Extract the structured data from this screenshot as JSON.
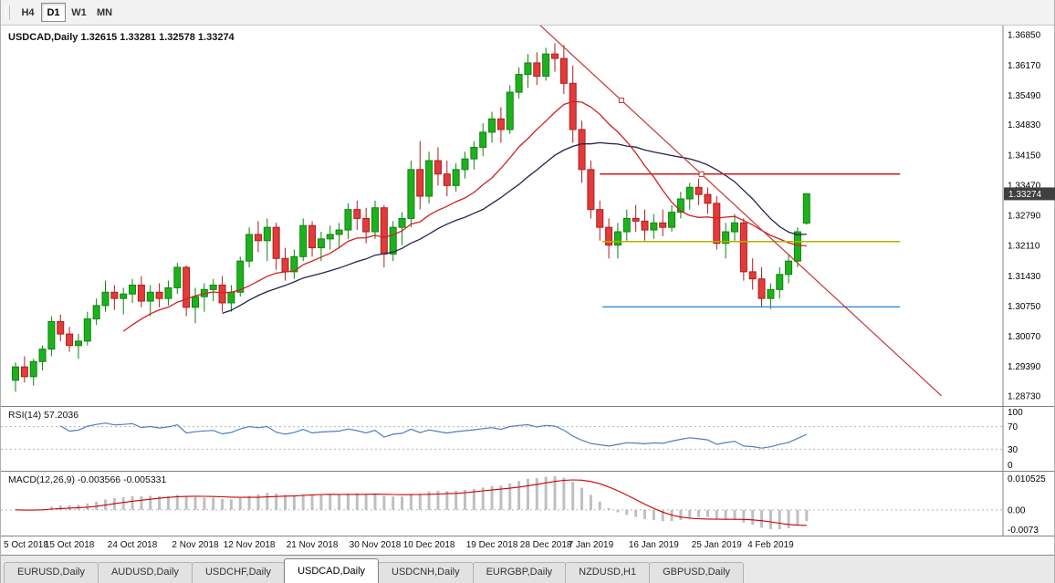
{
  "toolbar": {
    "periods": [
      {
        "label": "H4",
        "active": false
      },
      {
        "label": "D1",
        "active": true
      },
      {
        "label": "W1",
        "active": false
      },
      {
        "label": "MN",
        "active": false
      }
    ]
  },
  "chart": {
    "title": "USDCAD,Daily 1.32615 1.33281 1.32578 1.33274"
  },
  "chart_data": {
    "type": "candlestick",
    "symbol": "USDCAD",
    "period": "Daily",
    "ohlc_display": {
      "open": "1.32615",
      "high": "1.33281",
      "low": "1.32578",
      "close": "1.33274"
    },
    "current_price": "1.33274",
    "price_axis_ticks": [
      "1.36850",
      "1.36170",
      "1.35490",
      "1.34830",
      "1.34150",
      "1.33470",
      "1.32790",
      "1.32110",
      "1.31430",
      "1.30750",
      "1.30070",
      "1.29390",
      "1.28730"
    ],
    "x_axis_labels": [
      [
        "5 Oct 2018",
        0
      ],
      [
        "15 Oct 2018",
        6
      ],
      [
        "24 Oct 2018",
        13
      ],
      [
        "2 Nov 2018",
        20
      ],
      [
        "12 Nov 2018",
        26
      ],
      [
        "21 Nov 2018",
        33
      ],
      [
        "30 Nov 2018",
        40
      ],
      [
        "10 Dec 2018",
        46
      ],
      [
        "19 Dec 2018",
        53
      ],
      [
        "28 Dec 2018",
        59
      ],
      [
        "7 Jan 2019",
        64
      ],
      [
        "16 Jan 2019",
        71
      ],
      [
        "25 Jan 2019",
        78
      ],
      [
        "4 Feb 2019",
        84
      ]
    ],
    "candles": [
      [
        1.2908,
        1.2948,
        1.2882,
        1.2938
      ],
      [
        1.2938,
        1.2962,
        1.2903,
        1.2916
      ],
      [
        1.2916,
        1.2956,
        1.2896,
        1.295
      ],
      [
        1.295,
        1.2986,
        1.293,
        1.2978
      ],
      [
        1.2978,
        1.3052,
        1.2962,
        1.304
      ],
      [
        1.304,
        1.3056,
        1.2996,
        1.3012
      ],
      [
        1.3012,
        1.3028,
        1.2972,
        1.2986
      ],
      [
        1.2986,
        1.3012,
        1.2956,
        1.2996
      ],
      [
        1.2996,
        1.3062,
        1.2986,
        1.3046
      ],
      [
        1.3046,
        1.3092,
        1.3032,
        1.3076
      ],
      [
        1.3076,
        1.3132,
        1.3062,
        1.3106
      ],
      [
        1.3106,
        1.3122,
        1.3066,
        1.3092
      ],
      [
        1.3092,
        1.3116,
        1.3056,
        1.3102
      ],
      [
        1.3102,
        1.3136,
        1.3082,
        1.3122
      ],
      [
        1.3122,
        1.3142,
        1.3072,
        1.3086
      ],
      [
        1.3086,
        1.3122,
        1.3052,
        1.3106
      ],
      [
        1.3106,
        1.3126,
        1.3072,
        1.3092
      ],
      [
        1.3092,
        1.3132,
        1.3076,
        1.3116
      ],
      [
        1.3116,
        1.3172,
        1.3102,
        1.3162
      ],
      [
        1.3162,
        1.3166,
        1.3052,
        1.3072
      ],
      [
        1.3072,
        1.3116,
        1.3036,
        1.3096
      ],
      [
        1.3096,
        1.3126,
        1.3062,
        1.3112
      ],
      [
        1.3112,
        1.3136,
        1.3086,
        1.3122
      ],
      [
        1.3122,
        1.3142,
        1.3062,
        1.3082
      ],
      [
        1.3082,
        1.3122,
        1.3062,
        1.3106
      ],
      [
        1.3106,
        1.3186,
        1.3096,
        1.3176
      ],
      [
        1.3176,
        1.3252,
        1.3162,
        1.3236
      ],
      [
        1.3236,
        1.3266,
        1.3196,
        1.3222
      ],
      [
        1.3222,
        1.3272,
        1.3176,
        1.3252
      ],
      [
        1.3252,
        1.3262,
        1.3156,
        1.3182
      ],
      [
        1.3182,
        1.3206,
        1.3132,
        1.3152
      ],
      [
        1.3152,
        1.3202,
        1.3136,
        1.3186
      ],
      [
        1.3186,
        1.3272,
        1.3176,
        1.3256
      ],
      [
        1.3256,
        1.3266,
        1.3186,
        1.3206
      ],
      [
        1.3206,
        1.3242,
        1.3176,
        1.3226
      ],
      [
        1.3226,
        1.3256,
        1.3202,
        1.3236
      ],
      [
        1.3236,
        1.3262,
        1.3206,
        1.3246
      ],
      [
        1.3246,
        1.3306,
        1.3226,
        1.3292
      ],
      [
        1.3292,
        1.3312,
        1.3246,
        1.3272
      ],
      [
        1.3272,
        1.3296,
        1.3216,
        1.3242
      ],
      [
        1.3242,
        1.3312,
        1.3226,
        1.3296
      ],
      [
        1.3296,
        1.3302,
        1.3162,
        1.3192
      ],
      [
        1.3192,
        1.3266,
        1.3176,
        1.3252
      ],
      [
        1.3252,
        1.3286,
        1.3212,
        1.3272
      ],
      [
        1.3272,
        1.3402,
        1.3252,
        1.3382
      ],
      [
        1.3382,
        1.3446,
        1.3292,
        1.3322
      ],
      [
        1.3322,
        1.3422,
        1.3306,
        1.3402
      ],
      [
        1.3402,
        1.3432,
        1.3346,
        1.3372
      ],
      [
        1.3372,
        1.3402,
        1.3322,
        1.3346
      ],
      [
        1.3346,
        1.3396,
        1.3332,
        1.3382
      ],
      [
        1.3382,
        1.3422,
        1.3362,
        1.3406
      ],
      [
        1.3406,
        1.3446,
        1.3382,
        1.3432
      ],
      [
        1.3432,
        1.3486,
        1.3412,
        1.3466
      ],
      [
        1.3466,
        1.3512,
        1.3442,
        1.3496
      ],
      [
        1.3496,
        1.3522,
        1.3442,
        1.3472
      ],
      [
        1.3472,
        1.3572,
        1.3462,
        1.3556
      ],
      [
        1.3556,
        1.3612,
        1.3542,
        1.3596
      ],
      [
        1.3596,
        1.3642,
        1.3566,
        1.3622
      ],
      [
        1.3622,
        1.3646,
        1.3572,
        1.3592
      ],
      [
        1.3592,
        1.3656,
        1.3582,
        1.3642
      ],
      [
        1.3642,
        1.3666,
        1.3602,
        1.3632
      ],
      [
        1.3632,
        1.3662,
        1.3552,
        1.3576
      ],
      [
        1.3576,
        1.3616,
        1.3442,
        1.3472
      ],
      [
        1.3472,
        1.3492,
        1.3352,
        1.3382
      ],
      [
        1.3382,
        1.3402,
        1.3272,
        1.3292
      ],
      [
        1.3292,
        1.3312,
        1.3222,
        1.3252
      ],
      [
        1.3252,
        1.3272,
        1.3182,
        1.3212
      ],
      [
        1.3212,
        1.3262,
        1.3182,
        1.3242
      ],
      [
        1.3242,
        1.3292,
        1.3222,
        1.3272
      ],
      [
        1.3272,
        1.3302,
        1.3242,
        1.3266
      ],
      [
        1.3266,
        1.3292,
        1.3222,
        1.3246
      ],
      [
        1.3246,
        1.3282,
        1.3226,
        1.3262
      ],
      [
        1.3262,
        1.3292,
        1.3232,
        1.3252
      ],
      [
        1.3252,
        1.3302,
        1.3242,
        1.3286
      ],
      [
        1.3286,
        1.3332,
        1.3272,
        1.3316
      ],
      [
        1.3316,
        1.3352,
        1.3292,
        1.3342
      ],
      [
        1.3342,
        1.3362,
        1.3302,
        1.3326
      ],
      [
        1.3326,
        1.3342,
        1.3282,
        1.3306
      ],
      [
        1.3306,
        1.3322,
        1.3202,
        1.3216
      ],
      [
        1.3216,
        1.3262,
        1.3182,
        1.3242
      ],
      [
        1.3242,
        1.3282,
        1.3222,
        1.3262
      ],
      [
        1.3262,
        1.3272,
        1.3132,
        1.3152
      ],
      [
        1.3152,
        1.3182,
        1.3112,
        1.3136
      ],
      [
        1.3136,
        1.3162,
        1.3072,
        1.3092
      ],
      [
        1.3092,
        1.3126,
        1.3068,
        1.3112
      ],
      [
        1.3112,
        1.3162,
        1.3092,
        1.3146
      ],
      [
        1.3146,
        1.3192,
        1.3126,
        1.3176
      ],
      [
        1.3176,
        1.3252,
        1.3162,
        1.3242
      ],
      [
        1.32615,
        1.33281,
        1.32578,
        1.33274
      ]
    ],
    "overlays": {
      "ma_fast": {
        "period": 13,
        "color": "#cc2222"
      },
      "ma_slow": {
        "period": 24,
        "color": "#23234e"
      },
      "trendline": {
        "color": "#c33636",
        "p1": {
          "bar": 48,
          "price": 1.39
        },
        "p2": {
          "bar": 103,
          "price": 1.2873
        },
        "handles": [
          67.4,
          76.3
        ]
      },
      "hlines": [
        {
          "price": 1.3372,
          "color": "#cc2222",
          "from": 65,
          "to": 98.4
        },
        {
          "price": 1.322,
          "color": "#b0b000",
          "from": 65.3,
          "to": 98.4
        },
        {
          "price": 1.3073,
          "color": "#3e8fd8",
          "from": 65.3,
          "to": 98.4
        }
      ]
    },
    "rsi": {
      "label": "RSI(14) 57.2036",
      "period": 14,
      "value": "57.2036",
      "levels": [
        70,
        30
      ],
      "axis_labels": [
        [
          "100",
          100
        ],
        [
          "70",
          70
        ],
        [
          "30",
          30
        ],
        [
          "0",
          0
        ]
      ],
      "color": "#4f7fc0"
    },
    "macd": {
      "label": "MACD(12,26,9) -0.003566 -0.005331",
      "fast": 12,
      "slow": 26,
      "signal": 9,
      "main_value": "-0.003566",
      "signal_value": "-0.005331",
      "axis_labels": {
        "top": "0.010525",
        "zero": "0.00",
        "bottom": "-0.0073"
      },
      "hist_color": "#bfbfbf",
      "signal_color": "#cc0000"
    }
  },
  "colors": {
    "up_fill": "#1db21d",
    "up_stroke": "#118211",
    "down_fill": "#e23b3b",
    "down_stroke": "#b01c1c",
    "axis_line": "#808080",
    "axis_text": "#000000",
    "badge_bg": "#3f3f3f",
    "badge_text": "#ffffff",
    "level_dotted": "#b5b5b5"
  },
  "tabs": [
    {
      "label": "EURUSD,Daily",
      "active": false
    },
    {
      "label": "AUDUSD,Daily",
      "active": false
    },
    {
      "label": "USDCHF,Daily",
      "active": false
    },
    {
      "label": "USDCAD,Daily",
      "active": true
    },
    {
      "label": "USDCNH,Daily",
      "active": false
    },
    {
      "label": "EURGBP,Daily",
      "active": false
    },
    {
      "label": "NZDUSD,H1",
      "active": false
    },
    {
      "label": "GBPUSD,Daily",
      "active": false
    }
  ]
}
